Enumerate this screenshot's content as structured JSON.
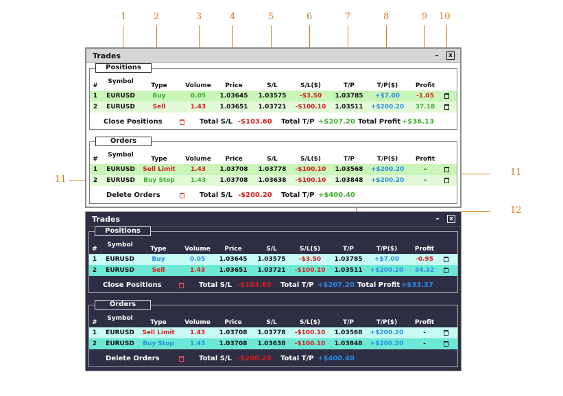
{
  "callouts": [
    "1",
    "2",
    "3",
    "4",
    "5",
    "6",
    "7",
    "8",
    "9",
    "10",
    "11",
    "11",
    "12"
  ],
  "colors": {
    "green": "#3cae2c",
    "red": "#d21e1e",
    "blue": "#2a8be0",
    "light_green_row": "#c9f5b8",
    "light_green_row2": "#e3fad8",
    "dark_row1": "#c6faf2",
    "dark_row2": "#6ee8d6",
    "accent": "#d97a1c"
  },
  "light": {
    "title": "Trades",
    "min_glyph": "–",
    "close_glyph": "x",
    "positions": {
      "legend": "Positions",
      "headers": {
        "num": "#",
        "symbol": "Symbol",
        "type": "Type",
        "volume": "Volume",
        "price": "Price",
        "sl": "S/L",
        "slv": "S/L($)",
        "tp": "T/P",
        "tpv": "T/P($)",
        "profit": "Profit"
      },
      "rows": [
        {
          "num": "1",
          "symbol": "EURUSD",
          "type": "Buy",
          "volume": "0.05",
          "price": "1.03645",
          "sl": "1.03575",
          "slv": "-$3.50",
          "tp": "1.03785",
          "tpv": "+$7.00",
          "profit": "-1.05"
        },
        {
          "num": "2",
          "symbol": "EURUSD",
          "type": "Sell",
          "volume": "1.43",
          "price": "1.03651",
          "sl": "1.03721",
          "slv": "-$100.10",
          "tp": "1.03511",
          "tpv": "+$200.20",
          "profit": "37.18"
        }
      ],
      "footer": {
        "close_label": "Close Positions",
        "total_sl_label": "Total S/L",
        "total_sl": "-$103.60",
        "total_tp_label": "Total T/P",
        "total_tp": "+$207.20",
        "total_profit_label": "Total Profit",
        "total_profit": "+$36.13"
      }
    },
    "orders": {
      "legend": "Orders",
      "headers": {
        "num": "#",
        "symbol": "Symbol",
        "type": "Type",
        "volume": "Volume",
        "price": "Price",
        "sl": "S/L",
        "slv": "S/L($)",
        "tp": "T/P",
        "tpv": "T/P($)",
        "profit": "Profit"
      },
      "rows": [
        {
          "num": "1",
          "symbol": "EURUSD",
          "type": "Sell Limit",
          "volume": "1.43",
          "price": "1.03708",
          "sl": "1.03778",
          "slv": "-$100.10",
          "tp": "1.03568",
          "tpv": "+$200.20",
          "profit": "-"
        },
        {
          "num": "2",
          "symbol": "EURUSD",
          "type": "Buy Stop",
          "volume": "1.43",
          "price": "1.03708",
          "sl": "1.03638",
          "slv": "-$100.10",
          "tp": "1.03848",
          "tpv": "+$200.20",
          "profit": "-"
        }
      ],
      "footer": {
        "delete_label": "Delete Orders",
        "total_sl_label": "Total S/L",
        "total_sl": "-$200.20",
        "total_tp_label": "Total T/P",
        "total_tp": "+$400.40"
      }
    }
  },
  "dark": {
    "title": "Trades",
    "min_glyph": "–",
    "close_glyph": "x",
    "positions": {
      "legend": "Positions",
      "headers": {
        "num": "#",
        "symbol": "Symbol",
        "type": "Type",
        "volume": "Volume",
        "price": "Price",
        "sl": "S/L",
        "slv": "S/L($)",
        "tp": "T/P",
        "tpv": "T/P($)",
        "profit": "Profit"
      },
      "rows": [
        {
          "num": "1",
          "symbol": "EURUSD",
          "type": "Buy",
          "volume": "0.05",
          "price": "1.03645",
          "sl": "1.03575",
          "slv": "-$3.50",
          "tp": "1.03785",
          "tpv": "+$7.00",
          "profit": "-0.95"
        },
        {
          "num": "2",
          "symbol": "EURUSD",
          "type": "Sell",
          "volume": "1.43",
          "price": "1.03651",
          "sl": "1.03721",
          "slv": "-$100.10",
          "tp": "1.03511",
          "tpv": "+$200.20",
          "profit": "34.32"
        }
      ],
      "footer": {
        "close_label": "Close Positions",
        "total_sl_label": "Total S/L",
        "total_sl": "-$103.60",
        "total_tp_label": "Total T/P",
        "total_tp": "+$207.20",
        "total_profit_label": "Total Profit",
        "total_profit": "+$33.37"
      }
    },
    "orders": {
      "legend": "Orders",
      "headers": {
        "num": "#",
        "symbol": "Symbol",
        "type": "Type",
        "volume": "Volume",
        "price": "Price",
        "sl": "S/L",
        "slv": "S/L($)",
        "tp": "T/P",
        "tpv": "T/P($)",
        "profit": "Profit"
      },
      "rows": [
        {
          "num": "1",
          "symbol": "EURUSD",
          "type": "Sell Limit",
          "volume": "1.43",
          "price": "1.03708",
          "sl": "1.03778",
          "slv": "-$100.10",
          "tp": "1.03568",
          "tpv": "+$200.20",
          "profit": "-"
        },
        {
          "num": "2",
          "symbol": "EURUSD",
          "type": "Buy Stop",
          "volume": "1.43",
          "price": "1.03708",
          "sl": "1.03638",
          "slv": "-$100.10",
          "tp": "1.03848",
          "tpv": "+$200.20",
          "profit": "-"
        }
      ],
      "footer": {
        "delete_label": "Delete Orders",
        "total_sl_label": "Total S/L",
        "total_sl": "-$200.20",
        "total_tp_label": "Total T/P",
        "total_tp": "+$400.40"
      }
    }
  }
}
